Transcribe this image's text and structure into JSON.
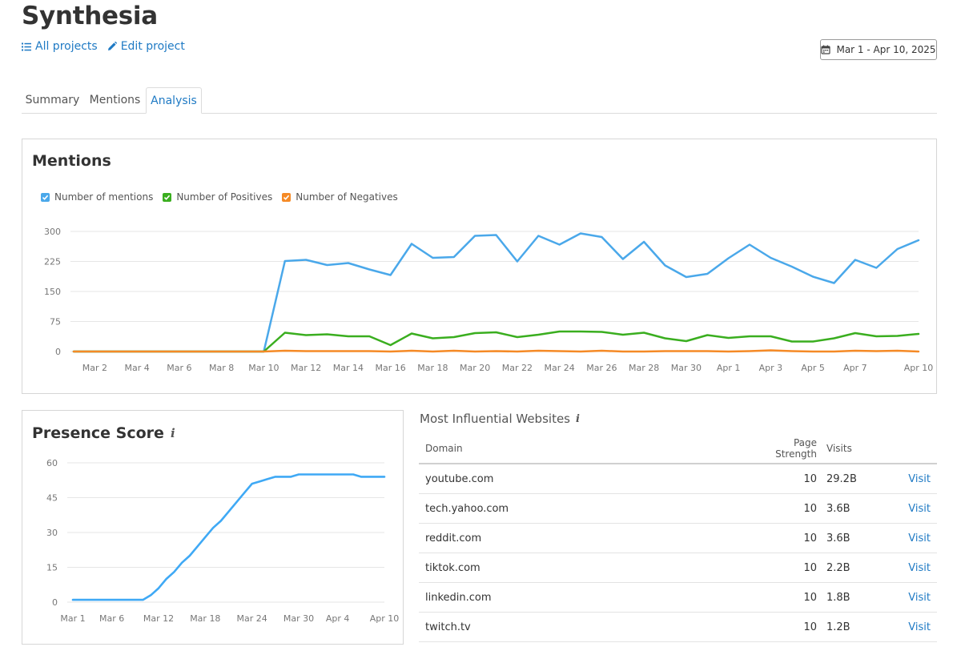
{
  "header": {
    "title": "Synthesia",
    "all_projects_label": "All projects",
    "edit_project_label": "Edit project",
    "date_range": "Mar 1 - Apr 10, 2025"
  },
  "tabs": [
    {
      "label": "Summary",
      "active": false
    },
    {
      "label": "Mentions",
      "active": false
    },
    {
      "label": "Analysis",
      "active": true
    }
  ],
  "colors": {
    "mentions": "#4aa8ea",
    "positives": "#3aae1f",
    "negatives": "#f58a26",
    "presence": "#3fa9f5",
    "link": "#1f7ac4"
  },
  "mentions_panel": {
    "title": "Mentions",
    "legend": [
      "Number of mentions",
      "Number of Positives",
      "Number of Negatives"
    ]
  },
  "presence_panel": {
    "title": "Presence Score",
    "info_icon": "info-icon"
  },
  "chart_data": [
    {
      "type": "line",
      "title": "Mentions",
      "x": [
        "Mar 1",
        "Mar 2",
        "Mar 3",
        "Mar 4",
        "Mar 5",
        "Mar 6",
        "Mar 7",
        "Mar 8",
        "Mar 9",
        "Mar 10",
        "Mar 11",
        "Mar 12",
        "Mar 13",
        "Mar 14",
        "Mar 15",
        "Mar 16",
        "Mar 17",
        "Mar 18",
        "Mar 19",
        "Mar 20",
        "Mar 21",
        "Mar 22",
        "Mar 23",
        "Mar 24",
        "Mar 25",
        "Mar 26",
        "Mar 27",
        "Mar 28",
        "Mar 29",
        "Mar 30",
        "Mar 31",
        "Apr 1",
        "Apr 2",
        "Apr 3",
        "Apr 4",
        "Apr 5",
        "Apr 6",
        "Apr 7",
        "Apr 8",
        "Apr 9",
        "Apr 10"
      ],
      "x_tick_labels": [
        "Mar 2",
        "Mar 4",
        "Mar 6",
        "Mar 8",
        "Mar 10",
        "Mar 12",
        "Mar 14",
        "Mar 16",
        "Mar 18",
        "Mar 20",
        "Mar 22",
        "Mar 24",
        "Mar 26",
        "Mar 28",
        "Mar 30",
        "Apr 1",
        "Apr 3",
        "Apr 5",
        "Apr 7",
        "Apr 10"
      ],
      "y_ticks": [
        0,
        75,
        150,
        225,
        300
      ],
      "ylim": [
        0,
        300
      ],
      "grid": true,
      "legend_position": "top-left",
      "series": [
        {
          "name": "Number of mentions",
          "values": [
            0,
            0,
            0,
            0,
            0,
            0,
            0,
            0,
            0,
            0,
            226,
            229,
            216,
            221,
            205,
            191,
            269,
            234,
            236,
            289,
            291,
            225,
            289,
            267,
            295,
            286,
            231,
            274,
            215,
            186,
            194,
            233,
            267,
            234,
            212,
            187,
            171,
            229,
            209,
            256,
            278
          ]
        },
        {
          "name": "Number of Positives",
          "values": [
            0,
            0,
            0,
            0,
            0,
            0,
            0,
            0,
            0,
            0,
            47,
            41,
            43,
            38,
            38,
            16,
            45,
            33,
            36,
            46,
            48,
            36,
            42,
            50,
            50,
            49,
            42,
            47,
            33,
            26,
            41,
            34,
            38,
            38,
            25,
            25,
            33,
            46,
            38,
            39,
            44
          ]
        },
        {
          "name": "Number of Negatives",
          "values": [
            0,
            0,
            0,
            0,
            0,
            0,
            0,
            0,
            0,
            0,
            2,
            1,
            1,
            1,
            1,
            0,
            2,
            0,
            2,
            0,
            1,
            0,
            2,
            1,
            0,
            2,
            0,
            0,
            1,
            1,
            1,
            0,
            1,
            3,
            1,
            0,
            0,
            2,
            1,
            2,
            0
          ]
        }
      ]
    },
    {
      "type": "line",
      "title": "Presence Score",
      "x": [
        "Mar 1",
        "Mar 2",
        "Mar 3",
        "Mar 4",
        "Mar 5",
        "Mar 6",
        "Mar 7",
        "Mar 8",
        "Mar 9",
        "Mar 10",
        "Mar 11",
        "Mar 12",
        "Mar 13",
        "Mar 14",
        "Mar 15",
        "Mar 16",
        "Mar 17",
        "Mar 18",
        "Mar 19",
        "Mar 20",
        "Mar 21",
        "Mar 22",
        "Mar 23",
        "Mar 24",
        "Mar 25",
        "Mar 26",
        "Mar 27",
        "Mar 28",
        "Mar 29",
        "Mar 30",
        "Mar 31",
        "Apr 1",
        "Apr 2",
        "Apr 3",
        "Apr 4",
        "Apr 5",
        "Apr 6",
        "Apr 7",
        "Apr 8",
        "Apr 9",
        "Apr 10"
      ],
      "x_tick_labels": [
        "Mar 1",
        "Mar 6",
        "Mar 12",
        "Mar 18",
        "Mar 24",
        "Mar 30",
        "Apr 4",
        "Apr 10"
      ],
      "y_ticks": [
        0,
        15,
        30,
        45,
        60
      ],
      "ylim": [
        0,
        60
      ],
      "grid": true,
      "series": [
        {
          "name": "Presence Score",
          "values": [
            1,
            1,
            1,
            1,
            1,
            1,
            1,
            1,
            1,
            1,
            3,
            6,
            10,
            13,
            17,
            20,
            24,
            28,
            32,
            35,
            39,
            43,
            47,
            51,
            52,
            53,
            54,
            54,
            54,
            55,
            55,
            55,
            55,
            55,
            55,
            55,
            55,
            54,
            54,
            54,
            54
          ]
        }
      ]
    }
  ],
  "websites": {
    "title": "Most Influential Websites",
    "columns": {
      "domain": "Domain",
      "page_strength": "Page Strength",
      "visits": "Visits"
    },
    "link_label": "Visit",
    "rows": [
      {
        "domain": "youtube.com",
        "page_strength": "10",
        "visits": "29.2B"
      },
      {
        "domain": "tech.yahoo.com",
        "page_strength": "10",
        "visits": "3.6B"
      },
      {
        "domain": "reddit.com",
        "page_strength": "10",
        "visits": "3.6B"
      },
      {
        "domain": "tiktok.com",
        "page_strength": "10",
        "visits": "2.2B"
      },
      {
        "domain": "linkedin.com",
        "page_strength": "10",
        "visits": "1.8B"
      },
      {
        "domain": "twitch.tv",
        "page_strength": "10",
        "visits": "1.2B"
      }
    ]
  }
}
